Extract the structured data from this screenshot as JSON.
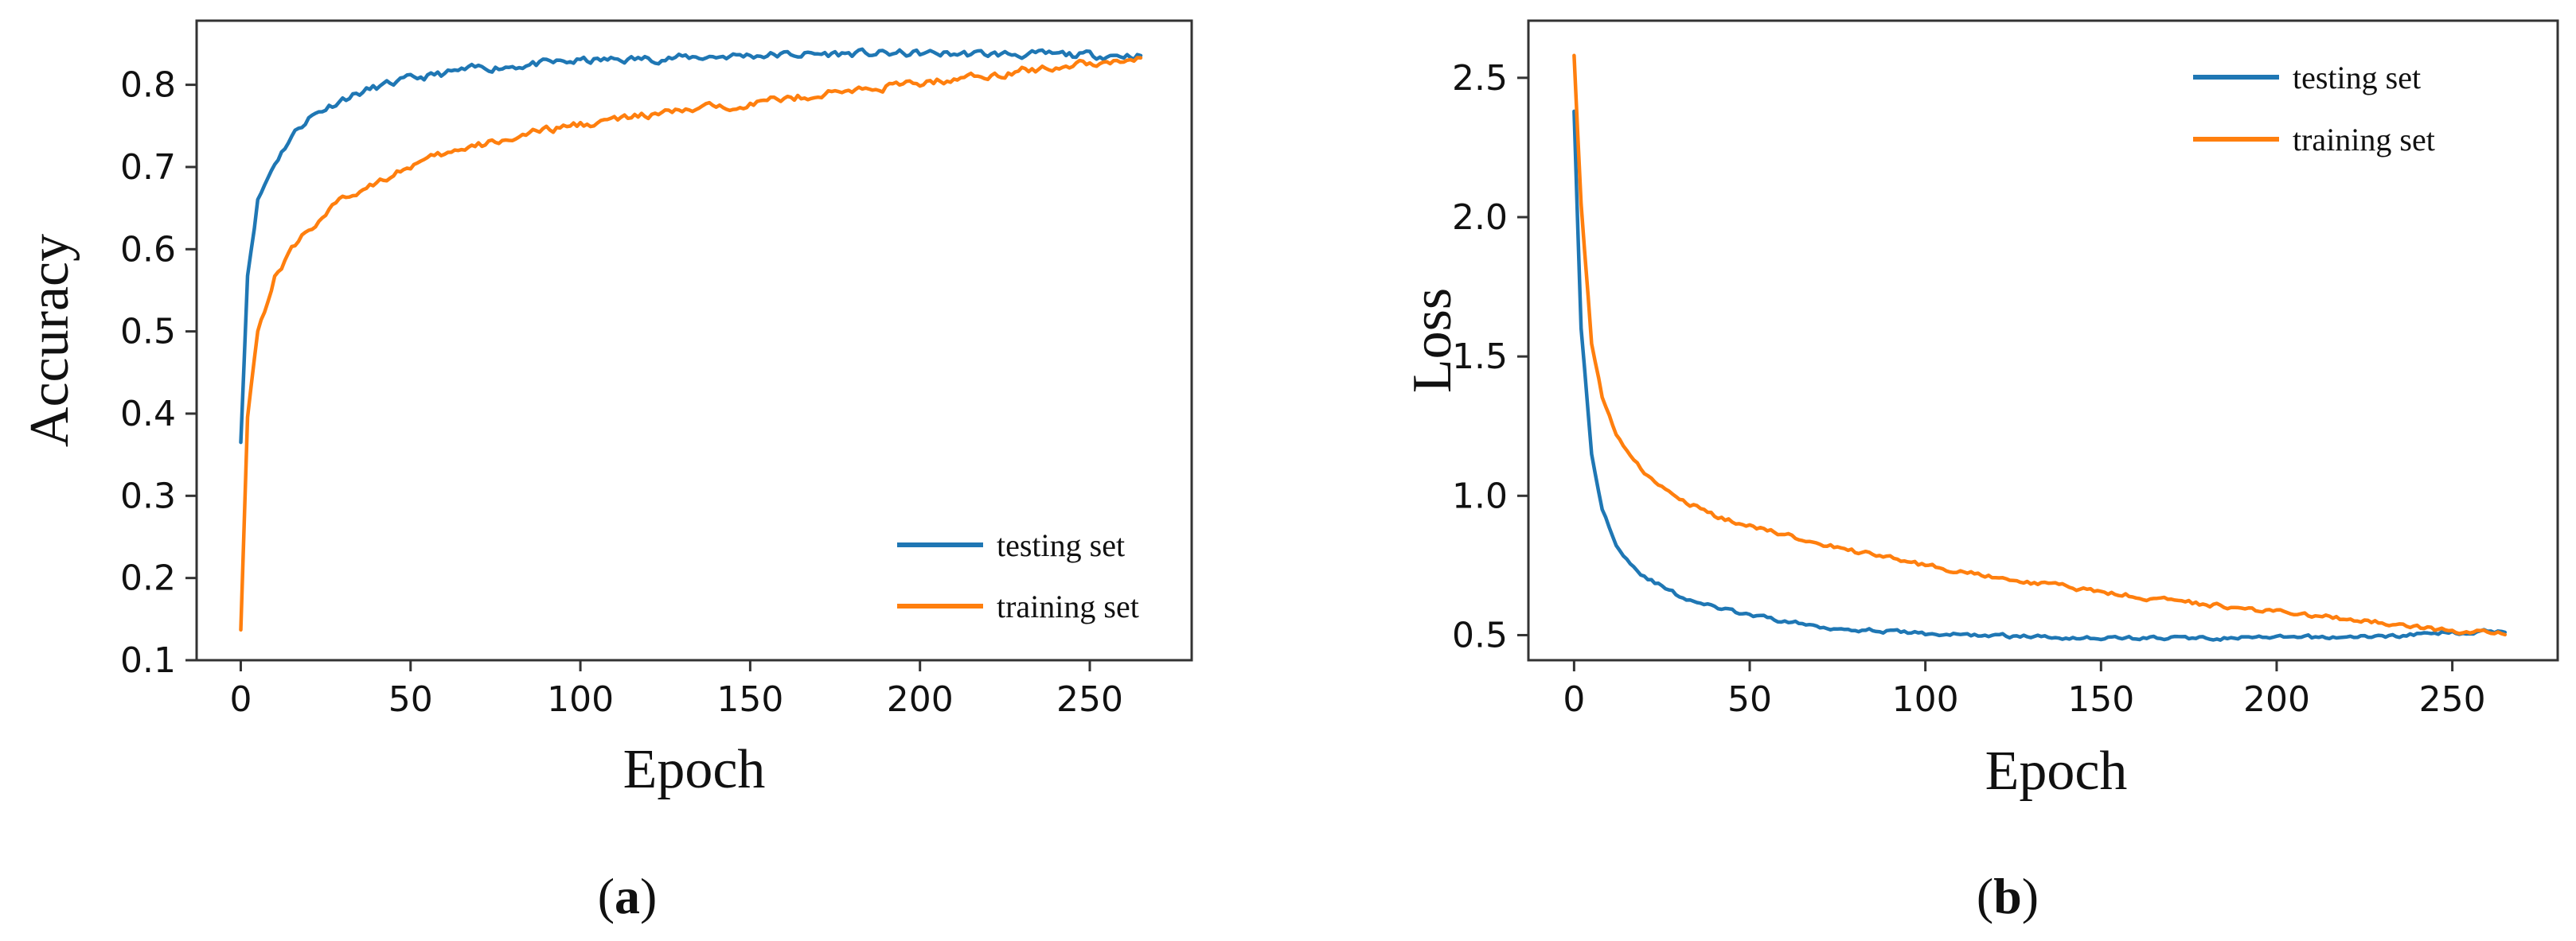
{
  "chart_data": [
    {
      "type": "line",
      "panel": "a",
      "caption_open": "(",
      "caption_letter": "a",
      "caption_close": ")",
      "xlabel": "Epoch",
      "ylabel": "Accuracy",
      "xlim": [
        -13,
        280
      ],
      "ylim": [
        0.1,
        0.878
      ],
      "xticks": [
        0,
        50,
        100,
        150,
        200,
        250
      ],
      "xtick_labels": [
        "0",
        "50",
        "100",
        "150",
        "200",
        "250"
      ],
      "yticks": [
        0.1,
        0.2,
        0.3,
        0.4,
        0.5,
        0.6,
        0.7,
        0.8
      ],
      "ytick_labels": [
        "0.1",
        "0.2",
        "0.3",
        "0.4",
        "0.5",
        "0.6",
        "0.7",
        "0.8"
      ],
      "grid": false,
      "legend_position": "lower-right",
      "series": [
        {
          "name": "testing set",
          "color": "#1f77b4",
          "x": [
            0,
            2,
            5,
            10,
            15,
            20,
            30,
            40,
            50,
            70,
            100,
            130,
            150,
            180,
            200,
            230,
            250,
            265
          ],
          "y": [
            0.365,
            0.57,
            0.66,
            0.705,
            0.738,
            0.76,
            0.783,
            0.797,
            0.807,
            0.82,
            0.829,
            0.833,
            0.836,
            0.838,
            0.838,
            0.837,
            0.836,
            0.836
          ],
          "noise": 0.004
        },
        {
          "name": "training set",
          "color": "#ff7f0e",
          "x": [
            0,
            2,
            5,
            10,
            15,
            20,
            30,
            40,
            50,
            60,
            80,
            100,
            130,
            150,
            180,
            200,
            230,
            250,
            265
          ],
          "y": [
            0.137,
            0.4,
            0.5,
            0.565,
            0.6,
            0.625,
            0.66,
            0.683,
            0.701,
            0.715,
            0.736,
            0.752,
            0.768,
            0.778,
            0.793,
            0.802,
            0.817,
            0.827,
            0.832
          ],
          "noise": 0.004
        }
      ]
    },
    {
      "type": "line",
      "panel": "b",
      "caption_open": "(",
      "caption_letter": "b",
      "caption_close": ")",
      "xlabel": "Epoch",
      "ylabel": "Loss",
      "xlim": [
        -13,
        280
      ],
      "ylim": [
        0.41,
        2.705
      ],
      "xticks": [
        0,
        50,
        100,
        150,
        200,
        250
      ],
      "xtick_labels": [
        "0",
        "50",
        "100",
        "150",
        "200",
        "250"
      ],
      "yticks": [
        0.5,
        1.0,
        1.5,
        2.0,
        2.5
      ],
      "ytick_labels": [
        "0.5",
        "1.0",
        "1.5",
        "2.0",
        "2.5"
      ],
      "grid": false,
      "legend_position": "upper-right",
      "series": [
        {
          "name": "testing set",
          "color": "#1f77b4",
          "x": [
            0,
            2,
            5,
            8,
            12,
            16,
            20,
            30,
            40,
            50,
            70,
            100,
            130,
            150,
            180,
            200,
            230,
            250,
            265
          ],
          "y": [
            2.38,
            1.6,
            1.15,
            0.95,
            0.83,
            0.76,
            0.71,
            0.64,
            0.6,
            0.57,
            0.53,
            0.505,
            0.495,
            0.49,
            0.49,
            0.49,
            0.495,
            0.51,
            0.515
          ],
          "noise": 0.006
        },
        {
          "name": "training set",
          "color": "#ff7f0e",
          "x": [
            0,
            2,
            5,
            8,
            12,
            16,
            20,
            30,
            40,
            50,
            60,
            80,
            100,
            130,
            150,
            180,
            200,
            230,
            250,
            265
          ],
          "y": [
            2.58,
            2.05,
            1.55,
            1.35,
            1.22,
            1.14,
            1.08,
            0.99,
            0.93,
            0.89,
            0.86,
            0.8,
            0.75,
            0.69,
            0.655,
            0.61,
            0.585,
            0.545,
            0.515,
            0.505
          ],
          "noise": 0.007
        }
      ]
    }
  ]
}
